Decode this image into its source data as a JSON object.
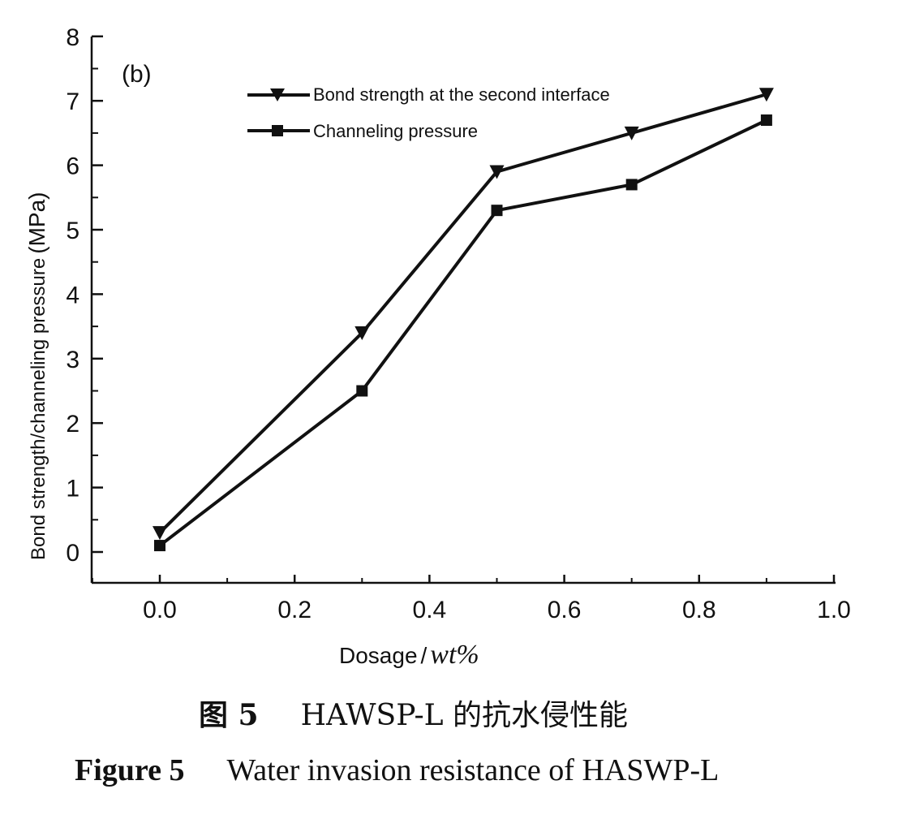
{
  "chart_data": {
    "type": "line",
    "panel_label": "(b)",
    "x": [
      0.0,
      0.3,
      0.5,
      0.7,
      0.9
    ],
    "series": [
      {
        "name": "Bond strength at the second interface",
        "marker": "triangle-down",
        "values": [
          0.3,
          3.4,
          5.9,
          6.5,
          7.1
        ]
      },
      {
        "name": "Channeling pressure",
        "marker": "square",
        "values": [
          0.1,
          2.5,
          5.3,
          5.7,
          6.7
        ]
      }
    ],
    "xlim": [
      -0.1,
      1.0
    ],
    "ylim": [
      0,
      8
    ],
    "x_ticks": [
      "0.0",
      "0.2",
      "0.4",
      "0.6",
      "0.8",
      "1.0"
    ],
    "y_ticks": [
      "0",
      "1",
      "2",
      "3",
      "4",
      "5",
      "6",
      "7",
      "8"
    ],
    "xlabel": "Dosage",
    "xlabel_sep": "/",
    "xlabel_unit": "wt%",
    "ylabel": "Bond strength/channeling pressure",
    "ylabel_unit": "(MPa)",
    "legend_position": "top-left",
    "grid": false,
    "line_color": "#111111"
  },
  "caption": {
    "cn_label": "图 5",
    "cn_text": "HAWSP-L 的抗水侵性能",
    "en_label": "Figure 5",
    "en_text": "Water invasion resistance of HASWP-L"
  }
}
